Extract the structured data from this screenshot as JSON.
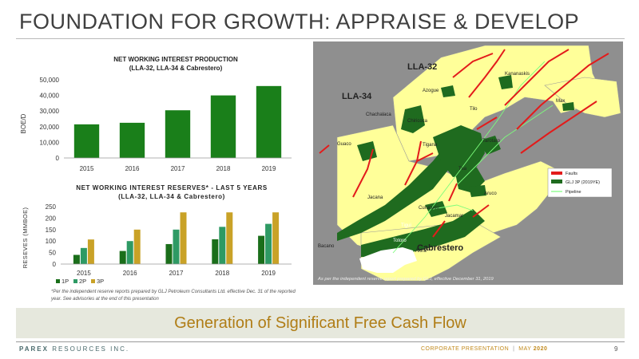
{
  "slide": {
    "title": "FOUNDATION FOR GROWTH: APPRAISE & DEVELOP",
    "banner": "Generation of Significant Free Cash Flow",
    "footnote": "*Per the independent reserve reports prepared by GLJ Petroleum Consultants Ltd. effective Dec. 31 of the reported year. See advisories at the end of this presentation",
    "footer": {
      "company_bold": "PAREX",
      "company_rest": " RESOURCES INC.",
      "presentation": "CORPORATE PRESENTATION",
      "separator": "|",
      "month": "MAY",
      "year": "2020",
      "page": "9"
    }
  },
  "chart_data": [
    {
      "type": "bar",
      "title": "NET WORKING INTEREST PRODUCTION",
      "subtitle": "(LLA-32, LLA-34 & Cabrestero)",
      "ylabel": "BOE/D",
      "xlabel": "",
      "categories": [
        "2015",
        "2016",
        "2017",
        "2018",
        "2019"
      ],
      "values": [
        21500,
        22500,
        30500,
        40000,
        46000
      ],
      "ylim": [
        0,
        50000
      ],
      "yticks": [
        "0",
        "10,000",
        "20,000",
        "30,000",
        "40,000",
        "50,000"
      ],
      "grid": false,
      "color": "#1a7f1a"
    },
    {
      "type": "bar",
      "title": "NET WORKING INTEREST RESERVES* - LAST 5 YEARS",
      "subtitle": "(LLA-32, LLA-34 & Cabrestero)",
      "ylabel": "RESEVES (MMBOE)",
      "xlabel": "",
      "categories": [
        "2015",
        "2016",
        "2017",
        "2018",
        "2019"
      ],
      "series": [
        {
          "name": "1P",
          "values": [
            40,
            57,
            87,
            108,
            123
          ],
          "color": "#1a6e1a"
        },
        {
          "name": "2P",
          "values": [
            70,
            100,
            150,
            162,
            175
          ],
          "color": "#2e9a64"
        },
        {
          "name": "3P",
          "values": [
            107,
            150,
            225,
            225,
            225
          ],
          "color": "#c9a227"
        }
      ],
      "ylim": [
        0,
        250
      ],
      "yticks": [
        "0",
        "50",
        "100",
        "150",
        "200",
        "250"
      ],
      "grid": false,
      "legend_position": "bottom-left"
    }
  ],
  "map": {
    "blocks": {
      "llA32": "LLA-32",
      "llA34": "LLA-34",
      "cabrestero": "Cabrestero"
    },
    "fields": [
      "Kananaskis",
      "Azogue",
      "Max",
      "Tilo",
      "Chachalaca",
      "Chiricoca",
      "Guaco",
      "Tigana",
      "Tarotaro",
      "Tua",
      "Aruco",
      "Jacana",
      "Curucucu",
      "Jacamar",
      "Tigui",
      "Totoro",
      "Bacano",
      "Akira"
    ],
    "legend": {
      "faults": "Faults",
      "glj": "GLJ 3P (2019YE)",
      "pipeline": "Pipeline"
    },
    "caption": "As per the independent reserve report prepared by GLJ, effective  December 31, 2019",
    "colors": {
      "background": "#8f8f8f",
      "block": "#ffff99",
      "field": "#1f6b1f",
      "fault": "#e31b1b",
      "pipeline": "#7cfc7c"
    }
  }
}
